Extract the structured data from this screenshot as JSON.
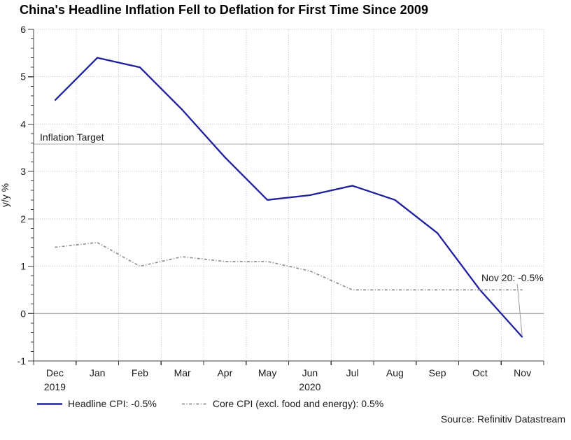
{
  "title": "China's Headline Inflation Fell to Deflation for First Time Since 2009",
  "source": "Source: Refinitiv Datastream",
  "colors": {
    "background": "#ffffff",
    "axis": "#3d3d3d",
    "grid": "#c4c4c4",
    "reference": "#a8a8a8",
    "text": "#1a1a1a",
    "headline_blue": "#20209f",
    "core_gray": "#8f8f8f"
  },
  "chart_data": {
    "type": "line",
    "title": "China's Headline Inflation Fell to Deflation for First Time Since 2009",
    "xlabel": "",
    "ylabel": "y/y %",
    "ylim": [
      -1,
      6
    ],
    "y_ticks": [
      -1,
      0,
      1,
      2,
      3,
      4,
      5,
      6
    ],
    "y_minor_step": 0.2,
    "grid": "dotted",
    "legend_position": "bottom-left",
    "categories": [
      "Dec",
      "Jan",
      "Feb",
      "Mar",
      "Apr",
      "May",
      "Jun",
      "Jul",
      "Aug",
      "Sep",
      "Oct",
      "Nov"
    ],
    "year_labels": [
      {
        "index": 0,
        "text": "2019"
      },
      {
        "index": 6,
        "text": "2020"
      }
    ],
    "series": [
      {
        "name": "Headline CPI",
        "legend_label": "Headline CPI: -0.5%",
        "color": "#20209f",
        "style": "solid",
        "values": [
          4.5,
          5.4,
          5.2,
          4.3,
          3.3,
          2.4,
          2.5,
          2.7,
          2.4,
          1.7,
          0.5,
          -0.5
        ]
      },
      {
        "name": "Core CPI (excl. food and energy)",
        "legend_label": "Core CPI (excl. food and energy): 0.5%",
        "color": "#8f8f8f",
        "style": "dash-dot",
        "values": [
          1.4,
          1.5,
          1.0,
          1.2,
          1.1,
          1.1,
          0.9,
          0.5,
          0.5,
          0.5,
          0.5,
          0.5
        ]
      }
    ],
    "reference_lines": [
      {
        "label": "Inflation Target",
        "value": 3.58
      },
      {
        "label": "",
        "value": 0
      }
    ],
    "annotation": {
      "text": "Nov 20: -0.5%",
      "x_index": 11,
      "y": -0.5
    }
  }
}
